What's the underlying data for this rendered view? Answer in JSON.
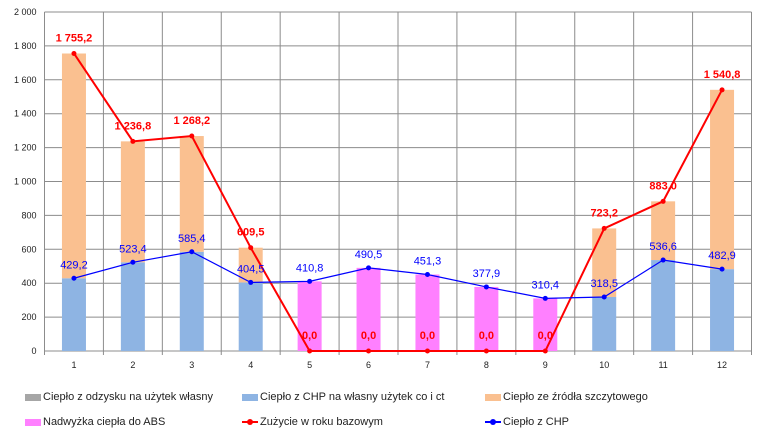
{
  "chart_data": {
    "type": "bar",
    "stacked": true,
    "categories": [
      "1",
      "2",
      "3",
      "4",
      "5",
      "6",
      "7",
      "8",
      "9",
      "10",
      "11",
      "12"
    ],
    "ylim": [
      0,
      2000
    ],
    "yticks": [
      "0",
      "200",
      "400",
      "600",
      "800",
      "1 000",
      "1 200",
      "1 400",
      "1 600",
      "1 800",
      "2 000"
    ],
    "ytick_values": [
      0,
      200,
      400,
      600,
      800,
      1000,
      1200,
      1400,
      1600,
      1800,
      2000
    ],
    "grid": true,
    "legend_position": "bottom",
    "series": [
      {
        "name": "Ciepło z odzysku na użytek własny",
        "kind": "bar",
        "color": "#a6a6a6",
        "values": [
          0,
          0,
          0,
          0,
          0,
          0,
          0,
          0,
          0,
          0,
          0,
          0
        ]
      },
      {
        "name": "Ciepło z CHP na własny użytek co i ct",
        "kind": "bar",
        "color": "#8eb4e3",
        "values": [
          429.2,
          523.4,
          585.4,
          404.5,
          0,
          0,
          0,
          0,
          0,
          318.5,
          536.6,
          482.9
        ]
      },
      {
        "name": "Ciepło ze źródła szczytowego",
        "kind": "bar",
        "color": "#fac090",
        "values": [
          1326.0,
          713.4,
          682.8,
          205.0,
          0,
          0,
          0,
          0,
          0,
          404.7,
          346.4,
          1057.9
        ]
      },
      {
        "name": "Nadwyżka ciepła do ABS",
        "kind": "bar",
        "color": "#ff80ff",
        "values": [
          0,
          0,
          0,
          0,
          410.8,
          490.5,
          451.3,
          377.9,
          310.4,
          0,
          0,
          0
        ]
      },
      {
        "name": "Zużycie w roku bazowym",
        "kind": "line",
        "color": "#ff0000",
        "values": [
          1755.2,
          1236.8,
          1268.2,
          609.5,
          0.0,
          0.0,
          0.0,
          0.0,
          0.0,
          723.2,
          883.0,
          1540.8
        ],
        "labels": [
          "1 755,2",
          "1 236,8",
          "1 268,2",
          "609,5",
          "0,0",
          "0,0",
          "0,0",
          "0,0",
          "0,0",
          "723,2",
          "883,0",
          "1 540,8"
        ]
      },
      {
        "name": "Ciepło z CHP",
        "kind": "line",
        "color": "#0000ff",
        "values": [
          429.2,
          523.4,
          585.4,
          404.5,
          410.8,
          490.5,
          451.3,
          377.9,
          310.4,
          318.5,
          536.6,
          482.9
        ],
        "labels": [
          "429,2",
          "523,4",
          "585,4",
          "404,5",
          "410,8",
          "490,5",
          "451,3",
          "377,9",
          "310,4",
          "318,5",
          "536,6",
          "482,9"
        ]
      }
    ]
  }
}
